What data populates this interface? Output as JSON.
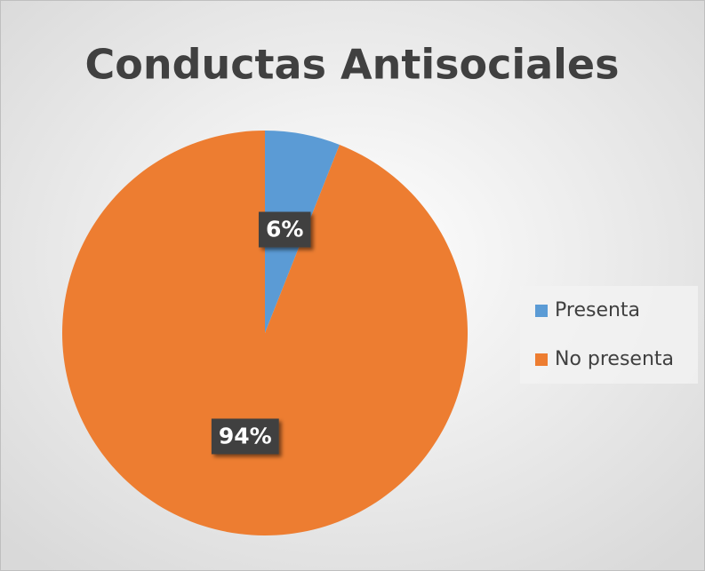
{
  "chart_data": {
    "type": "pie",
    "title": "Conductas Antisociales",
    "categories": [
      "Presenta",
      "No presenta"
    ],
    "values": [
      6,
      94
    ],
    "value_labels": [
      "6%",
      "94%"
    ],
    "colors": [
      "#5b9bd5",
      "#ed7d31"
    ],
    "legend": "right"
  }
}
